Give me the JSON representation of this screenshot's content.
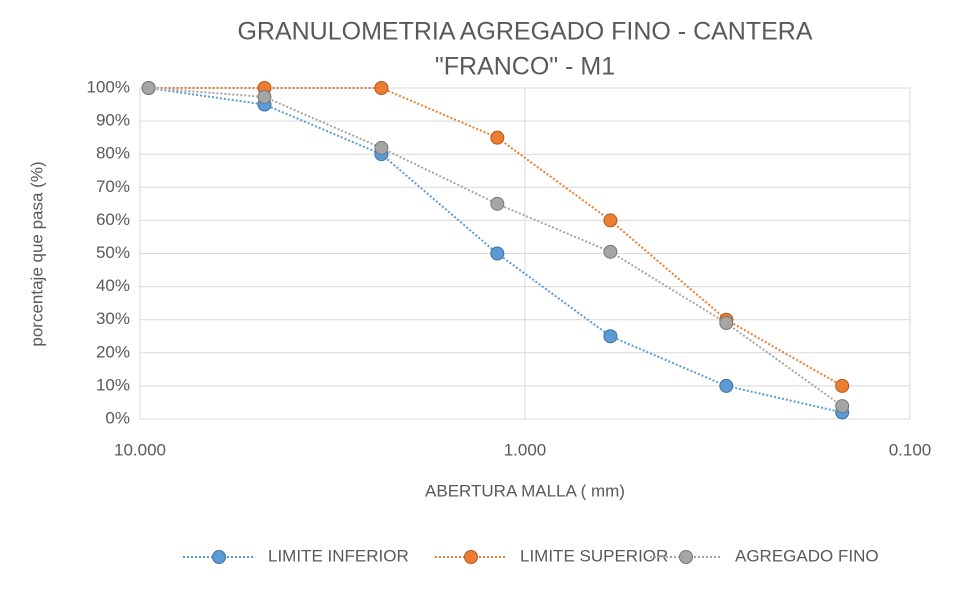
{
  "chart_data": {
    "type": "line",
    "title": "GRANULOMETRIA AGREGADO FINO - CANTERA",
    "subtitle": "\"FRANCO\" - M1",
    "x_label": "ABERTURA MALLA ( mm)",
    "y_label": "porcentaje que pasa (%)",
    "x": [
      9.5,
      4.75,
      2.36,
      1.18,
      0.6,
      0.3,
      0.15
    ],
    "series": [
      {
        "name": "LIMITE INFERIOR",
        "color": "#5b9bd5",
        "values": [
          100,
          95,
          80,
          50,
          25,
          10,
          2
        ]
      },
      {
        "name": "LIMITE SUPERIOR",
        "color": "#ed7d31",
        "values": [
          100,
          100,
          100,
          85,
          60,
          30,
          10
        ]
      },
      {
        "name": "AGREGADO FINO",
        "color": "#a5a5a5",
        "values": [
          100,
          97.3,
          81.9,
          65,
          50.5,
          29,
          3.9
        ]
      }
    ],
    "xlim": [
      10,
      0.1
    ],
    "xscale": "log",
    "xticks": [
      {
        "value": 10,
        "label": "10.000"
      },
      {
        "value": 1,
        "label": "1.000"
      },
      {
        "value": 0.1,
        "label": "0.100"
      }
    ],
    "ylim": [
      0,
      100
    ],
    "yticks": [
      {
        "value": 0,
        "label": "0%"
      },
      {
        "value": 10,
        "label": "10%"
      },
      {
        "value": 20,
        "label": "20%"
      },
      {
        "value": 30,
        "label": "30%"
      },
      {
        "value": 40,
        "label": "40%"
      },
      {
        "value": 50,
        "label": "50%"
      },
      {
        "value": 60,
        "label": "60%"
      },
      {
        "value": 70,
        "label": "70%"
      },
      {
        "value": 80,
        "label": "80%"
      },
      {
        "value": 90,
        "label": "90%"
      },
      {
        "value": 100,
        "label": "100%"
      }
    ],
    "grid": true,
    "legend": "bottom"
  }
}
